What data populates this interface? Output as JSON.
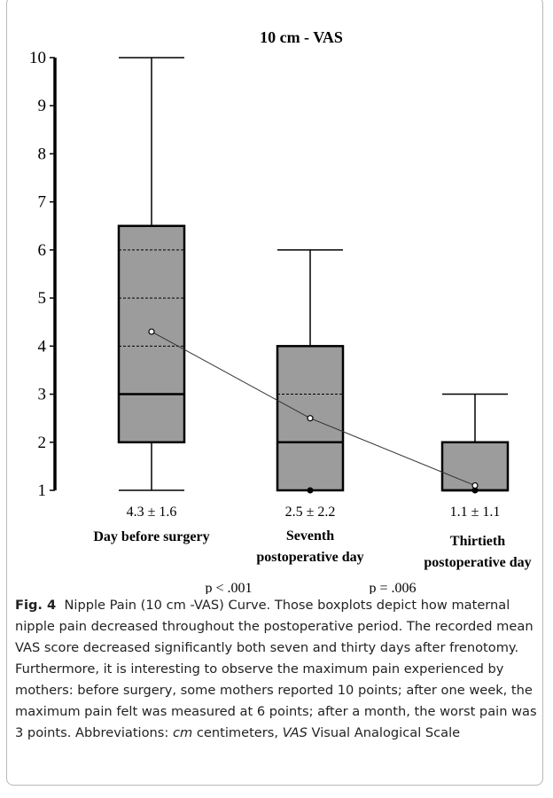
{
  "chart_data": {
    "type": "box",
    "title": "10 cm - VAS",
    "categories": [
      [
        "Day before surgery"
      ],
      [
        "Seventh",
        "postoperative day"
      ],
      [
        "Thirtieth",
        "postoperative day"
      ]
    ],
    "boxes": [
      {
        "min": 1,
        "q1": 2,
        "median": 3,
        "q3": 6.5,
        "max": 10,
        "mean": 4.3,
        "inner_lines": [
          4,
          5,
          6
        ],
        "mean_label": "4.3 ± 1.6"
      },
      {
        "min": 1,
        "q1": 1,
        "median": 2,
        "q3": 4,
        "max": 6,
        "mean": 2.5,
        "inner_lines": [
          3
        ],
        "mean_label": "2.5 ± 2.2"
      },
      {
        "min": 1,
        "q1": 1,
        "median": 1,
        "q3": 2,
        "max": 3,
        "mean": 1.1,
        "inner_lines": [],
        "mean_label": "1.1 ± 1.1"
      }
    ],
    "color": "#9c9c9c",
    "ylim": [
      1,
      10
    ],
    "yticks": [
      1,
      2,
      3,
      4,
      5,
      6,
      7,
      8,
      9,
      10
    ],
    "annotations": [
      "p < .001",
      "p = .006"
    ]
  },
  "caption": {
    "label": "Fig. 4",
    "text": "Nipple Pain (10 cm -VAS) Curve. Those boxplots depict how maternal nipple pain decreased throughout the postoperative period. The recorded mean VAS score decreased significantly both seven and thirty days after frenotomy. Furthermore, it is interesting to observe the maximum pain experienced by mothers: before surgery, some mothers reported 10 points; after one week, the maximum pain felt was measured at 6 points; after a month, the worst pain was 3 points.",
    "abbrev_heading": "Abbreviations:",
    "abbreviations": [
      {
        "term": "cm",
        "meaning": "centimeters"
      },
      {
        "term": "VAS",
        "meaning": "Visual Analogical Scale"
      }
    ]
  }
}
